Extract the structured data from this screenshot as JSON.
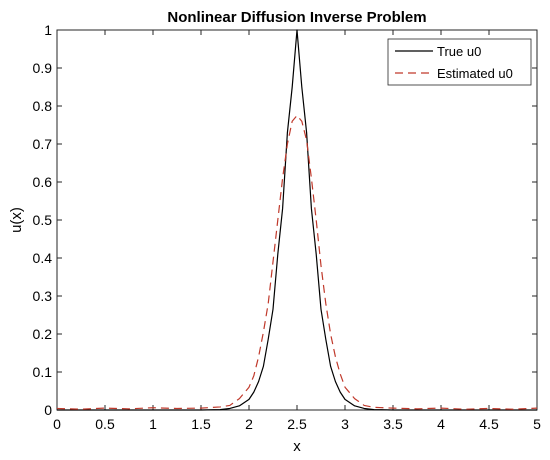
{
  "chart_data": {
    "type": "line",
    "title": "Nonlinear Diffusion Inverse Problem",
    "xlabel": "x",
    "ylabel": "u(x)",
    "xlim": [
      0,
      5
    ],
    "ylim": [
      0,
      1
    ],
    "xticks": [
      "0",
      "0.5",
      "1",
      "1.5",
      "2",
      "2.5",
      "3",
      "3.5",
      "4",
      "4.5",
      "5"
    ],
    "yticks": [
      "0",
      "0.1",
      "0.2",
      "0.3",
      "0.4",
      "0.5",
      "0.6",
      "0.7",
      "0.8",
      "0.9",
      "1"
    ],
    "grid": false,
    "legend_position": "top-right",
    "series": [
      {
        "name": "True u0",
        "color": "#000000",
        "style": "solid",
        "x": [
          0,
          0.25,
          0.5,
          0.75,
          1.0,
          1.25,
          1.5,
          1.7,
          1.8,
          1.9,
          2.0,
          2.05,
          2.1,
          2.15,
          2.2,
          2.25,
          2.3,
          2.35,
          2.4,
          2.45,
          2.5,
          2.55,
          2.6,
          2.65,
          2.7,
          2.75,
          2.8,
          2.85,
          2.9,
          2.95,
          3.0,
          3.1,
          3.2,
          3.3,
          3.5,
          3.75,
          4.0,
          4.25,
          4.5,
          4.75,
          5.0
        ],
        "y": [
          0,
          0,
          0,
          0,
          0,
          0,
          0,
          0.001,
          0.004,
          0.011,
          0.028,
          0.047,
          0.075,
          0.115,
          0.186,
          0.265,
          0.41,
          0.53,
          0.73,
          0.85,
          1.0,
          0.85,
          0.73,
          0.53,
          0.41,
          0.265,
          0.186,
          0.115,
          0.075,
          0.047,
          0.028,
          0.011,
          0.004,
          0.001,
          0,
          0,
          0,
          0,
          0,
          0,
          0
        ]
      },
      {
        "name": "Estimated u0",
        "color": "#c0392b",
        "style": "dashed",
        "x": [
          0,
          0.25,
          0.5,
          0.75,
          1.0,
          1.25,
          1.5,
          1.7,
          1.8,
          1.9,
          2.0,
          2.05,
          2.1,
          2.15,
          2.2,
          2.25,
          2.3,
          2.35,
          2.4,
          2.45,
          2.5,
          2.55,
          2.6,
          2.65,
          2.7,
          2.75,
          2.8,
          2.85,
          2.9,
          2.95,
          3.0,
          3.1,
          3.2,
          3.3,
          3.5,
          3.75,
          4.0,
          4.25,
          4.5,
          4.75,
          5.0
        ],
        "y": [
          0.004,
          0.002,
          0.005,
          0.003,
          0.006,
          0.004,
          0.005,
          0.008,
          0.012,
          0.03,
          0.06,
          0.09,
          0.14,
          0.205,
          0.28,
          0.39,
          0.5,
          0.61,
          0.7,
          0.76,
          0.775,
          0.76,
          0.71,
          0.61,
          0.5,
          0.38,
          0.28,
          0.2,
          0.14,
          0.095,
          0.06,
          0.03,
          0.012,
          0.007,
          0.005,
          0.003,
          0.005,
          0.002,
          0.004,
          0.002,
          0.005
        ]
      }
    ]
  }
}
